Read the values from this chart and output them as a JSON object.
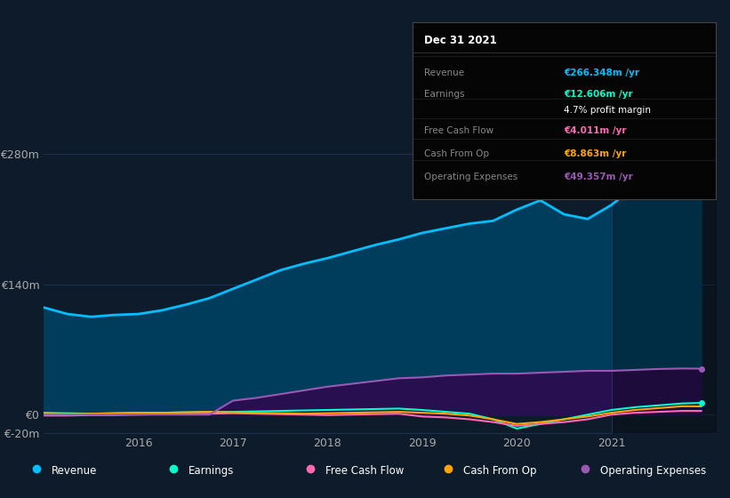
{
  "bg_color": "#0d1b2a",
  "plot_bg_color": "#0d1b2a",
  "grid_color": "#1e3050",
  "text_color": "#aaaaaa",
  "white_color": "#ffffff",
  "x_years": [
    2015.0,
    2015.25,
    2015.5,
    2015.75,
    2016.0,
    2016.25,
    2016.5,
    2016.75,
    2017.0,
    2017.25,
    2017.5,
    2017.75,
    2018.0,
    2018.25,
    2018.5,
    2018.75,
    2019.0,
    2019.25,
    2019.5,
    2019.75,
    2020.0,
    2020.25,
    2020.5,
    2020.75,
    2021.0,
    2021.25,
    2021.5,
    2021.75,
    2021.95
  ],
  "revenue": [
    115,
    108,
    105,
    107,
    108,
    112,
    118,
    125,
    135,
    145,
    155,
    162,
    168,
    175,
    182,
    188,
    195,
    200,
    205,
    208,
    220,
    230,
    215,
    210,
    225,
    245,
    260,
    270,
    266
  ],
  "earnings": [
    2,
    1.5,
    1,
    1.5,
    2,
    2,
    2.5,
    3,
    3,
    3.5,
    4,
    4.5,
    5,
    5.5,
    6,
    6.5,
    5,
    3,
    1,
    -5,
    -15,
    -10,
    -5,
    0,
    5,
    8,
    10,
    12,
    12.6
  ],
  "free_cash_flow": [
    -1,
    -1,
    -0.5,
    -0.5,
    0,
    0.5,
    1,
    1,
    1.5,
    1,
    0.5,
    0,
    -0.5,
    0,
    0.5,
    1,
    -2,
    -3,
    -5,
    -8,
    -12,
    -10,
    -8,
    -5,
    0,
    2,
    3,
    4,
    4.011
  ],
  "cash_from_op": [
    1,
    0.5,
    1,
    1.5,
    2,
    2,
    2.5,
    3,
    2.5,
    2,
    1.5,
    1,
    1.5,
    2,
    2.5,
    3,
    2,
    1,
    -1,
    -5,
    -10,
    -8,
    -5,
    -2,
    2,
    5,
    7,
    9,
    8.863
  ],
  "operating_expenses": [
    0,
    0,
    0,
    0,
    0,
    0,
    0,
    0,
    15,
    18,
    22,
    26,
    30,
    33,
    36,
    39,
    40,
    42,
    43,
    44,
    44,
    45,
    46,
    47,
    47,
    48,
    49,
    49.5,
    49.357
  ],
  "revenue_color": "#00bfff",
  "earnings_color": "#00ffcc",
  "free_cash_flow_color": "#ff69b4",
  "cash_from_op_color": "#ffa500",
  "operating_expenses_color": "#9b59b6",
  "revenue_fill_color": "#003d5c",
  "operating_expenses_fill_color": "#2d0a4e",
  "ylim": [
    -20,
    290
  ],
  "xlim": [
    2015.0,
    2022.1
  ],
  "yticks": [
    -20,
    0,
    140,
    280
  ],
  "ytick_labels": [
    "€-20m",
    "€0",
    "€140m",
    "€280m"
  ],
  "xticks": [
    2016,
    2017,
    2018,
    2019,
    2020,
    2021
  ],
  "xtick_labels": [
    "2016",
    "2017",
    "2018",
    "2019",
    "2020",
    "2021"
  ],
  "highlight_x": 2021.0,
  "tooltip_title": "Dec 31 2021",
  "tooltip_rows": [
    {
      "label": "Revenue",
      "value": "€266.348m /yr",
      "value_color": "#00bfff"
    },
    {
      "label": "Earnings",
      "value": "€12.606m /yr",
      "value_color": "#00ffcc"
    },
    {
      "label": "",
      "value": "4.7% profit margin",
      "value_color": "#ffffff"
    },
    {
      "label": "Free Cash Flow",
      "value": "€4.011m /yr",
      "value_color": "#ff69b4"
    },
    {
      "label": "Cash From Op",
      "value": "€8.863m /yr",
      "value_color": "#ffa500"
    },
    {
      "label": "Operating Expenses",
      "value": "€49.357m /yr",
      "value_color": "#9b59b6"
    }
  ],
  "legend_items": [
    {
      "label": "Revenue",
      "color": "#00bfff"
    },
    {
      "label": "Earnings",
      "color": "#00ffcc"
    },
    {
      "label": "Free Cash Flow",
      "color": "#ff69b4"
    },
    {
      "label": "Cash From Op",
      "color": "#ffa500"
    },
    {
      "label": "Operating Expenses",
      "color": "#9b59b6"
    }
  ]
}
